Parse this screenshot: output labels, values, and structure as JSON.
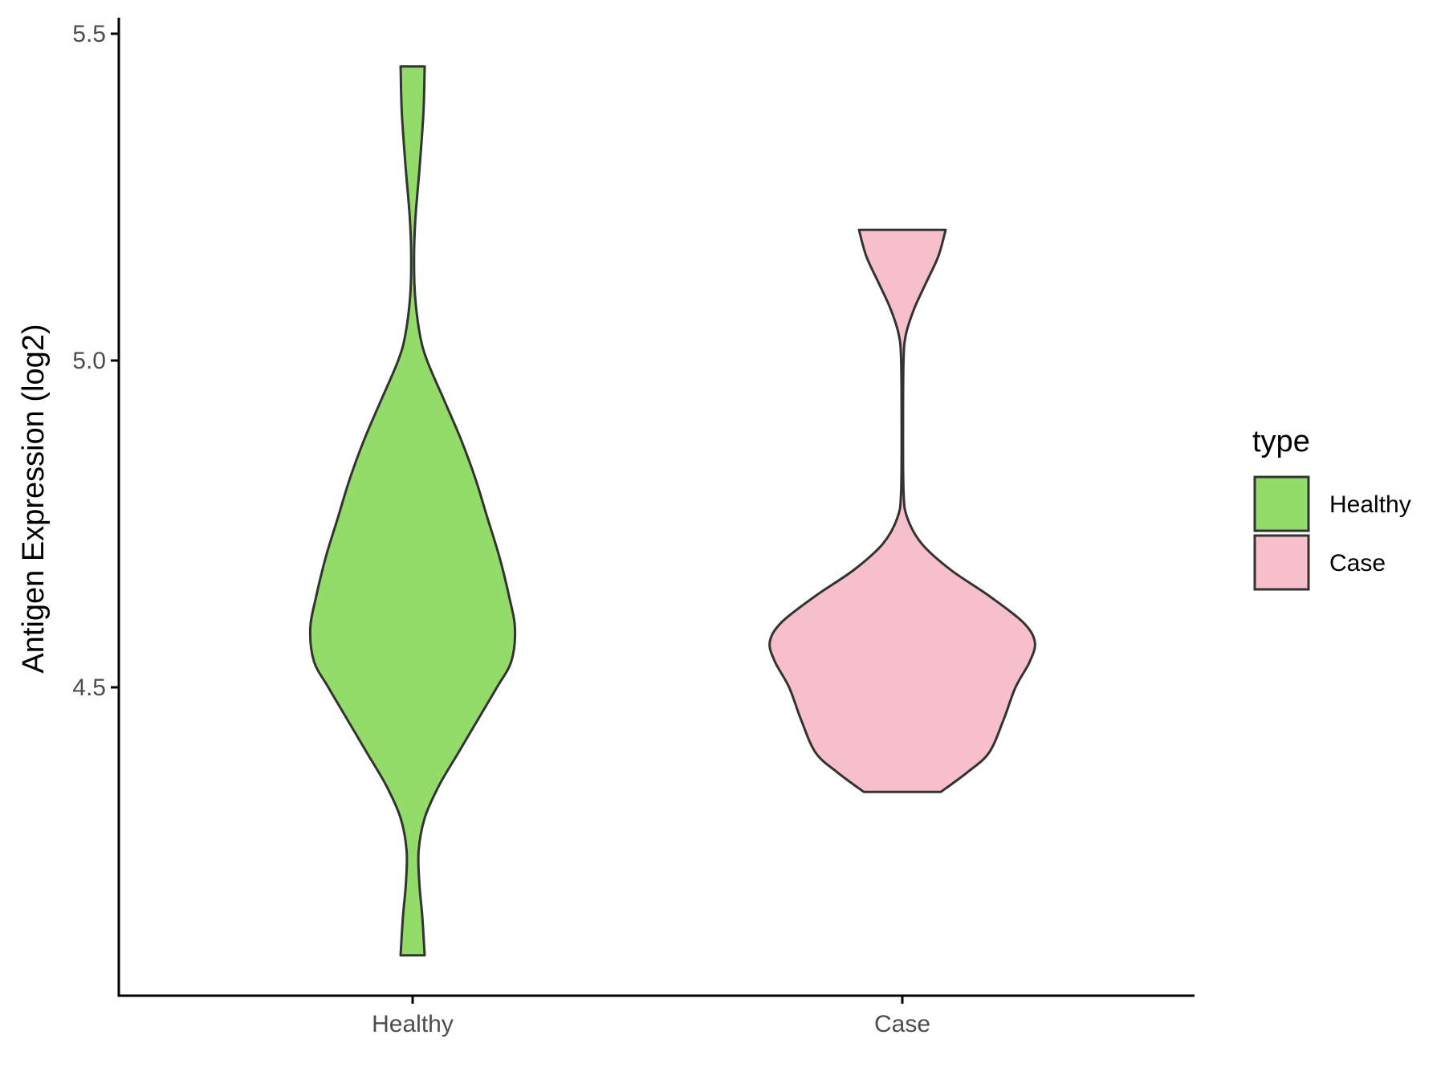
{
  "chart_data": {
    "type": "violin",
    "title": "",
    "xlabel": "",
    "ylabel": "Antigen Expression (log2)",
    "categories": [
      "Healthy",
      "Case"
    ],
    "ylim": [
      4.07,
      5.52
    ],
    "yticks": [
      4.5,
      5.0,
      5.5
    ],
    "ytick_labels": [
      "4.5",
      "5.0",
      "5.5"
    ],
    "grid": false,
    "legend": {
      "title": "type",
      "position": "right",
      "entries": [
        "Healthy",
        "Case"
      ]
    },
    "colors": {
      "Healthy": "#93dc6a",
      "Case": "#f7bfcb",
      "outline": "#333333",
      "axis": "#000000"
    },
    "series": [
      {
        "category": "Healthy",
        "min": 4.09,
        "max": 5.45,
        "density_profile": [
          {
            "y": 5.45,
            "half_width": 0.05
          },
          {
            "y": 5.38,
            "half_width": 0.045
          },
          {
            "y": 5.3,
            "half_width": 0.03
          },
          {
            "y": 5.22,
            "half_width": 0.012
          },
          {
            "y": 5.16,
            "half_width": 0.006
          },
          {
            "y": 5.1,
            "half_width": 0.01
          },
          {
            "y": 5.04,
            "half_width": 0.03
          },
          {
            "y": 5.0,
            "half_width": 0.06
          },
          {
            "y": 4.94,
            "half_width": 0.13
          },
          {
            "y": 4.88,
            "half_width": 0.2
          },
          {
            "y": 4.82,
            "half_width": 0.26
          },
          {
            "y": 4.76,
            "half_width": 0.31
          },
          {
            "y": 4.7,
            "half_width": 0.36
          },
          {
            "y": 4.64,
            "half_width": 0.4
          },
          {
            "y": 4.59,
            "half_width": 0.425
          },
          {
            "y": 4.54,
            "half_width": 0.41
          },
          {
            "y": 4.5,
            "half_width": 0.35
          },
          {
            "y": 4.45,
            "half_width": 0.27
          },
          {
            "y": 4.4,
            "half_width": 0.19
          },
          {
            "y": 4.35,
            "half_width": 0.11
          },
          {
            "y": 4.3,
            "half_width": 0.05
          },
          {
            "y": 4.25,
            "half_width": 0.025
          },
          {
            "y": 4.2,
            "half_width": 0.028
          },
          {
            "y": 4.15,
            "half_width": 0.04
          },
          {
            "y": 4.09,
            "half_width": 0.05
          }
        ]
      },
      {
        "category": "Case",
        "min": 4.34,
        "max": 5.2,
        "density_profile": [
          {
            "y": 5.2,
            "half_width": 0.18
          },
          {
            "y": 5.16,
            "half_width": 0.15
          },
          {
            "y": 5.12,
            "half_width": 0.1
          },
          {
            "y": 5.08,
            "half_width": 0.05
          },
          {
            "y": 5.04,
            "half_width": 0.015
          },
          {
            "y": 5.0,
            "half_width": 0.005
          },
          {
            "y": 4.9,
            "half_width": 0.003
          },
          {
            "y": 4.8,
            "half_width": 0.005
          },
          {
            "y": 4.76,
            "half_width": 0.02
          },
          {
            "y": 4.72,
            "half_width": 0.08
          },
          {
            "y": 4.68,
            "half_width": 0.2
          },
          {
            "y": 4.64,
            "half_width": 0.36
          },
          {
            "y": 4.6,
            "half_width": 0.5
          },
          {
            "y": 4.57,
            "half_width": 0.55
          },
          {
            "y": 4.54,
            "half_width": 0.53
          },
          {
            "y": 4.5,
            "half_width": 0.47
          },
          {
            "y": 4.45,
            "half_width": 0.42
          },
          {
            "y": 4.4,
            "half_width": 0.36
          },
          {
            "y": 4.37,
            "half_width": 0.27
          },
          {
            "y": 4.34,
            "half_width": 0.16
          }
        ]
      }
    ]
  }
}
